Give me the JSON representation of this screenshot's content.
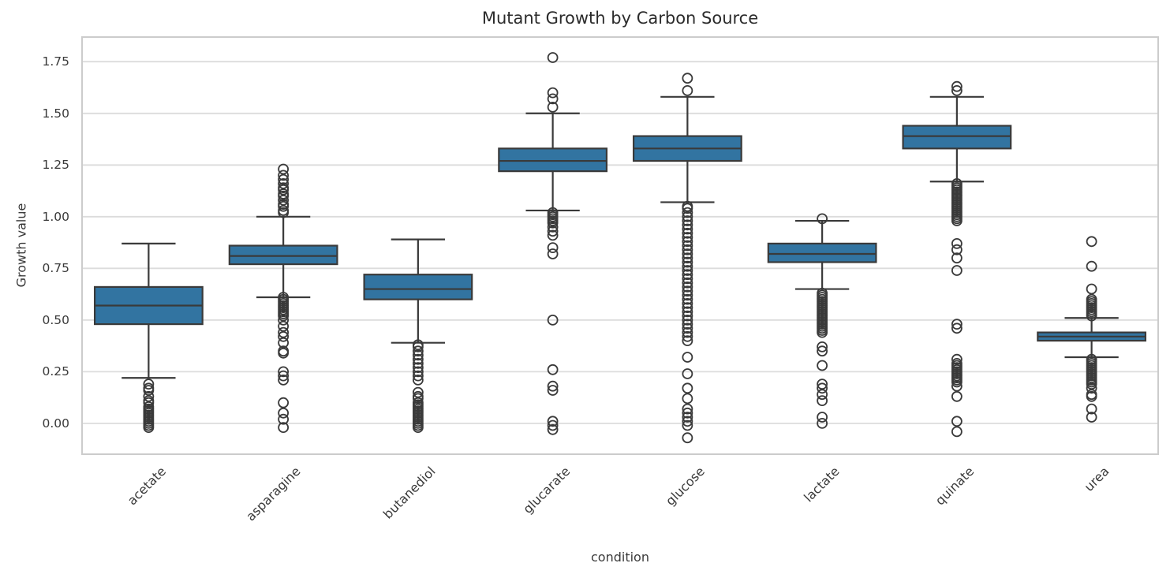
{
  "chart_data": {
    "type": "box",
    "title": "Mutant Growth by Carbon Source",
    "xlabel": "condition",
    "ylabel": "Growth value",
    "grid": true,
    "background": "#FFFFFF",
    "ylim": [
      -0.153,
      1.873
    ],
    "yticks": [
      {
        "value": 0.0,
        "label": "0.00"
      },
      {
        "value": 0.25,
        "label": "0.25"
      },
      {
        "value": 0.5,
        "label": "0.50"
      },
      {
        "value": 0.75,
        "label": "0.75"
      },
      {
        "value": 1.0,
        "label": "1.00"
      },
      {
        "value": 1.25,
        "label": "1.25"
      },
      {
        "value": 1.5,
        "label": "1.50"
      },
      {
        "value": 1.75,
        "label": "1.75"
      }
    ],
    "colors": {
      "box_fill": "#3274A1",
      "box_edge": "#3A3A3A",
      "whisker": "#3A3A3A",
      "grid": "#DCDCDC",
      "spine": "#CCCCCC",
      "title_text": "#2B2B2B",
      "tick_text": "#3A3A3A"
    },
    "categories": [
      "acetate",
      "asparagine",
      "butanediol",
      "glucarate",
      "glucose",
      "lactate",
      "quinate",
      "urea"
    ],
    "series": [
      {
        "label": "acetate",
        "whisker_low": 0.22,
        "q1": 0.48,
        "median": 0.57,
        "q3": 0.66,
        "whisker_high": 0.87,
        "outliers": [
          0.19,
          0.17,
          0.16,
          0.13,
          0.11,
          0.1,
          0.08,
          0.07,
          0.06,
          0.05,
          0.04,
          0.03,
          0.02,
          0.01,
          0.0,
          -0.01,
          -0.02
        ]
      },
      {
        "label": "asparagine",
        "whisker_low": 0.61,
        "q1": 0.77,
        "median": 0.81,
        "q3": 0.86,
        "whisker_high": 1.0,
        "outliers": [
          1.23,
          1.2,
          1.18,
          1.16,
          1.14,
          1.13,
          1.11,
          1.1,
          1.08,
          1.06,
          1.05,
          1.03,
          1.02,
          0.61,
          0.6,
          0.59,
          0.58,
          0.57,
          0.56,
          0.55,
          0.54,
          0.53,
          0.52,
          0.5,
          0.47,
          0.44,
          0.42,
          0.39,
          0.35,
          0.34,
          0.25,
          0.23,
          0.21,
          0.1,
          0.05,
          0.02,
          -0.02
        ]
      },
      {
        "label": "butanediol",
        "whisker_low": 0.39,
        "q1": 0.6,
        "median": 0.65,
        "q3": 0.72,
        "whisker_high": 0.89,
        "outliers": [
          0.38,
          0.37,
          0.35,
          0.33,
          0.31,
          0.29,
          0.27,
          0.25,
          0.23,
          0.21,
          0.15,
          0.13,
          0.12,
          0.1,
          0.09,
          0.08,
          0.07,
          0.06,
          0.05,
          0.04,
          0.03,
          0.02,
          0.01,
          0.0,
          -0.01,
          -0.02
        ]
      },
      {
        "label": "glucarate",
        "whisker_low": 1.03,
        "q1": 1.22,
        "median": 1.27,
        "q3": 1.33,
        "whisker_high": 1.5,
        "outliers": [
          1.77,
          1.6,
          1.57,
          1.53,
          1.02,
          1.01,
          1.0,
          0.99,
          0.98,
          0.97,
          0.95,
          0.93,
          0.91,
          0.85,
          0.82,
          0.5,
          0.26,
          0.18,
          0.16,
          0.01,
          -0.01,
          -0.03
        ]
      },
      {
        "label": "glucose",
        "whisker_low": 1.07,
        "q1": 1.27,
        "median": 1.33,
        "q3": 1.39,
        "whisker_high": 1.58,
        "outliers": [
          1.67,
          1.61,
          1.05,
          1.04,
          1.02,
          1.0,
          0.98,
          0.96,
          0.94,
          0.92,
          0.9,
          0.88,
          0.86,
          0.84,
          0.82,
          0.8,
          0.78,
          0.76,
          0.74,
          0.72,
          0.7,
          0.68,
          0.66,
          0.64,
          0.62,
          0.6,
          0.58,
          0.56,
          0.54,
          0.52,
          0.5,
          0.48,
          0.46,
          0.44,
          0.42,
          0.4,
          0.32,
          0.24,
          0.17,
          0.12,
          0.07,
          0.05,
          0.03,
          0.01,
          -0.01,
          -0.07
        ]
      },
      {
        "label": "lactate",
        "whisker_low": 0.65,
        "q1": 0.78,
        "median": 0.82,
        "q3": 0.87,
        "whisker_high": 0.98,
        "outliers": [
          0.99,
          0.63,
          0.62,
          0.61,
          0.6,
          0.59,
          0.58,
          0.57,
          0.56,
          0.55,
          0.54,
          0.53,
          0.52,
          0.51,
          0.5,
          0.49,
          0.48,
          0.47,
          0.46,
          0.45,
          0.44,
          0.37,
          0.35,
          0.28,
          0.19,
          0.17,
          0.14,
          0.11,
          0.03,
          0.0
        ]
      },
      {
        "label": "quinate",
        "whisker_low": 1.17,
        "q1": 1.33,
        "median": 1.39,
        "q3": 1.44,
        "whisker_high": 1.58,
        "outliers": [
          1.63,
          1.61,
          1.16,
          1.15,
          1.14,
          1.13,
          1.12,
          1.11,
          1.1,
          1.09,
          1.08,
          1.07,
          1.06,
          1.05,
          1.04,
          1.03,
          1.02,
          1.01,
          1.0,
          0.99,
          0.98,
          0.87,
          0.84,
          0.8,
          0.74,
          0.48,
          0.46,
          0.31,
          0.29,
          0.28,
          0.27,
          0.26,
          0.25,
          0.24,
          0.23,
          0.22,
          0.21,
          0.2,
          0.18,
          0.13,
          0.01,
          -0.04
        ]
      },
      {
        "label": "urea",
        "whisker_low": 0.32,
        "q1": 0.4,
        "median": 0.42,
        "q3": 0.44,
        "whisker_high": 0.51,
        "outliers": [
          0.88,
          0.76,
          0.65,
          0.6,
          0.59,
          0.58,
          0.57,
          0.56,
          0.55,
          0.54,
          0.53,
          0.52,
          0.31,
          0.3,
          0.29,
          0.28,
          0.27,
          0.26,
          0.25,
          0.24,
          0.23,
          0.22,
          0.21,
          0.2,
          0.19,
          0.17,
          0.14,
          0.13,
          0.07,
          0.03
        ]
      }
    ]
  }
}
